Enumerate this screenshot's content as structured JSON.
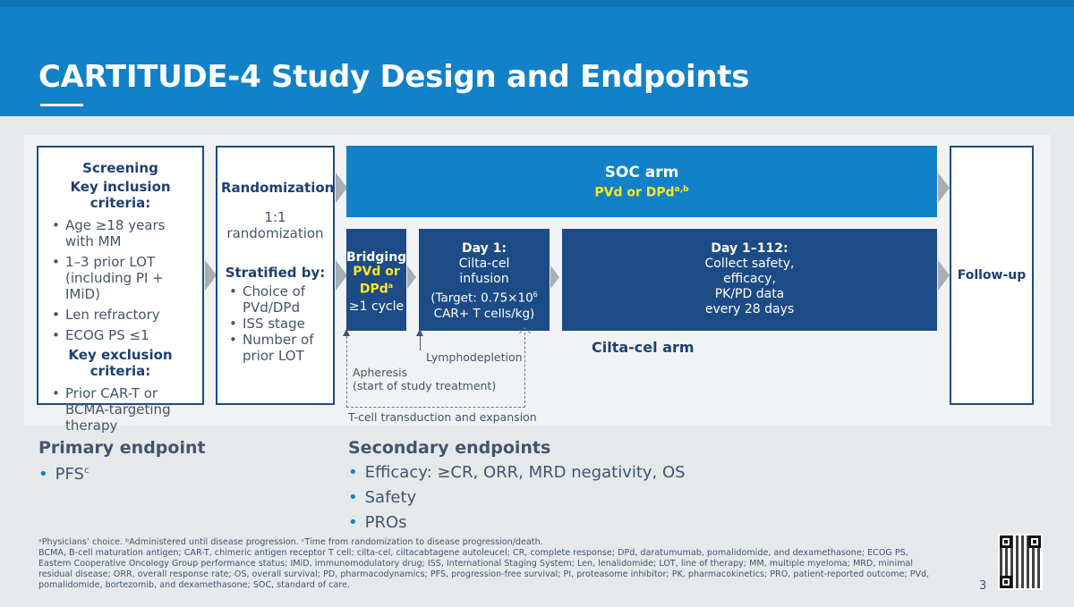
{
  "header": {
    "title": "CARTITUDE-4 Study Design and Endpoints"
  },
  "screening": {
    "heading": "Screening",
    "inclusion_heading": "Key inclusion criteria:",
    "inclusion": [
      "Age ≥18 years with MM",
      "1–3 prior LOT (including PI + IMiD)",
      "Len refractory",
      "ECOG PS ≤1"
    ],
    "exclusion_heading": "Key exclusion criteria:",
    "exclusion": [
      "Prior CAR-T or BCMA-targeting therapy"
    ]
  },
  "randomization": {
    "heading": "Randomization",
    "ratio": "1:1",
    "ratio_label": "randomization",
    "stratified_heading": "Stratified by:",
    "factors": [
      "Choice of PVd/DPd",
      "ISS stage",
      "Number of prior LOT"
    ]
  },
  "soc_arm": {
    "title": "SOC arm",
    "regimen": "PVd or DPd",
    "regimen_sup": "a,b"
  },
  "bridging": {
    "title": "Bridging",
    "regimen_line1": "PVd or",
    "regimen_line2": "DPd",
    "regimen_sup": "a",
    "cycles": "≥1 cycle"
  },
  "day1": {
    "title": "Day 1:",
    "line1": "Cilta-cel",
    "line2": "infusion",
    "target_prefix": "(Target: 0.75×10",
    "target_sup": "6",
    "target_suffix": "CAR+ T cells/kg)"
  },
  "day112": {
    "title": "Day 1–112:",
    "line1": "Collect safety,",
    "line2": "efficacy,",
    "line3": "PK/PD data",
    "line4": "every 28 days"
  },
  "cilta_arm_label": "Cilta-cel arm",
  "followup": "Follow-up",
  "timeline": {
    "apheresis_line1": "Apheresis",
    "apheresis_line2": "(start of study treatment)",
    "lymphodepletion": "Lymphodepletion",
    "transduction": "T-cell transduction and expansion"
  },
  "primary": {
    "title": "Primary endpoint",
    "items": [
      {
        "text": "PFS",
        "sup": "c"
      }
    ]
  },
  "secondary": {
    "title": "Secondary endpoints",
    "items": [
      "Efficacy: ≥CR, ORR, MRD negativity, OS",
      "Safety",
      "PROs"
    ]
  },
  "footnotes": {
    "line1": "ᵃPhysicians’ choice. ᵇAdministered until disease progression. ᶜTime from randomization to disease progression/death.",
    "abbrev": "BCMA, B-cell maturation antigen; CAR-T, chimeric antigen receptor T cell; cilta-cel, ciltacabtagene autoleucel; CR, complete response; DPd, daratumumab, pomalidomide, and dexamethasone; ECOG PS, Eastern Cooperative Oncology Group performance status; IMiD, immunomodulatory drug; ISS, International Staging System; Len, lenalidomide; LOT, line of therapy; MM, multiple myeloma; MRD, minimal residual disease; ORR, overall response rate; OS, overall survival; PD, pharmacodynamics; PFS, progression-free survival; PI, proteasome inhibitor; PK, pharmacokinetics; PRO, patient-reported outcome; PVd, pomalidomide, bortezomib, and dexamethasone; SOC, standard of care."
  },
  "page_number": "3",
  "colors": {
    "header": "#1281c8",
    "dark_box": "#1d4b86",
    "accent_yellow": "#ffe81a"
  }
}
